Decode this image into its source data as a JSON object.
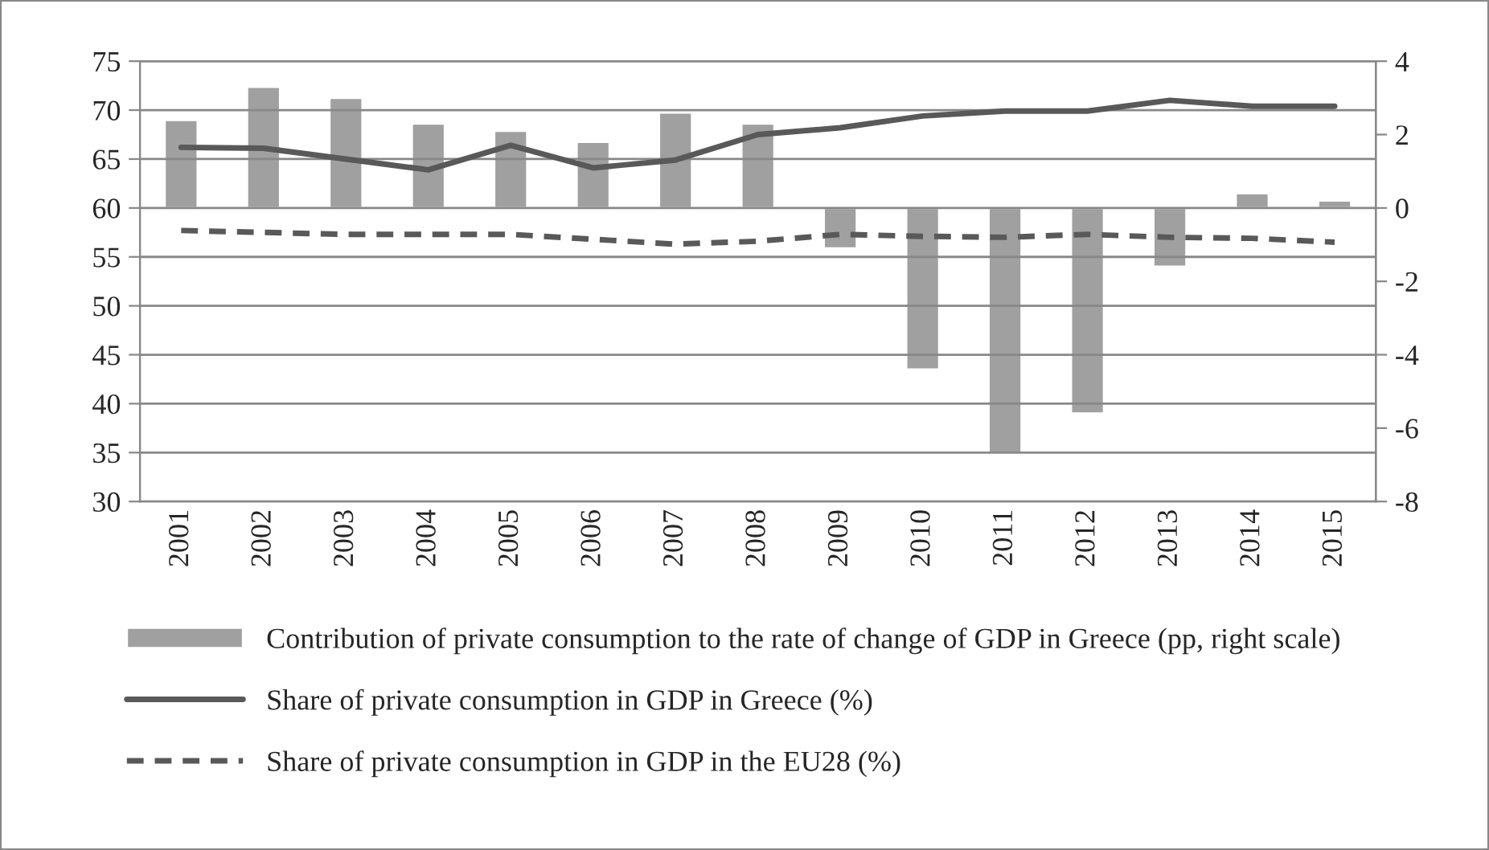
{
  "chart_data": {
    "type": "bar",
    "categories": [
      "2001",
      "2002",
      "2003",
      "2004",
      "2005",
      "2006",
      "2007",
      "2008",
      "2009",
      "2010",
      "2011",
      "2012",
      "2013",
      "2014",
      "2015"
    ],
    "series": [
      {
        "name": "Contribution of private consumption to the rate of change of GDP in Greece (pp, right scale)",
        "axis": "y2",
        "color": "#a0a0a0",
        "values": [
          2.4,
          3.3,
          3.0,
          2.3,
          2.1,
          1.8,
          2.6,
          2.3,
          -1.1,
          -4.4,
          -6.7,
          -5.6,
          -1.6,
          0.4,
          0.2
        ]
      },
      {
        "name": "Share of private consumption in GDP in Greece (%)",
        "type": "line",
        "line_style": "solid",
        "color": "#595959",
        "values": [
          66.2,
          66.1,
          65.0,
          63.9,
          66.4,
          64.1,
          64.9,
          67.5,
          68.2,
          69.4,
          69.9,
          69.9,
          71.0,
          70.4,
          70.4
        ]
      },
      {
        "name": "Share of private consumption in GDP in the EU28 (%)",
        "type": "line",
        "line_style": "dashed",
        "color": "#595959",
        "values": [
          57.7,
          57.5,
          57.3,
          57.3,
          57.3,
          56.8,
          56.3,
          56.6,
          57.3,
          57.1,
          57.0,
          57.3,
          57.0,
          56.9,
          56.5
        ]
      }
    ],
    "ylim": [
      30,
      75
    ],
    "yticks": [
      30,
      35,
      40,
      45,
      50,
      55,
      60,
      65,
      70,
      75
    ],
    "y2lim": [
      -8,
      4
    ],
    "y2ticks": [
      -8,
      -6,
      -4,
      -2,
      0,
      2,
      4
    ],
    "grid": "y",
    "legend": "bottom"
  }
}
